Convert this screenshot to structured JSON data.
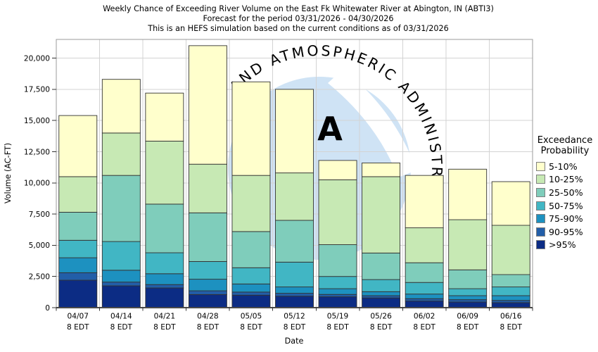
{
  "chart_data": {
    "type": "bar",
    "stacked": true,
    "title": "Weekly Chance of Exceeding River Volume on the East Fk Whitewater River at Abington, IN (ABTI3)",
    "subtitle": "Forecast for the period 03/31/2026 - 04/30/2026",
    "subtitle2": "This is an HEFS simulation based on the current conditions as of 03/31/2026",
    "xlabel": "Date",
    "ylabel": "Volume (AC-FT)",
    "ylim": [
      0,
      21500
    ],
    "yticks": [
      0,
      2500,
      5000,
      7500,
      10000,
      12500,
      15000,
      17500,
      20000
    ],
    "grid": true,
    "legend_position": "right",
    "legend_title_line1": "Exceedance",
    "legend_title_line2": "Probability",
    "categories": [
      "04/07",
      "04/14",
      "04/21",
      "04/28",
      "05/05",
      "05/12",
      "05/19",
      "05/26",
      "06/02",
      "06/09",
      "06/16"
    ],
    "tick_line2": "8 EDT",
    "series": [
      {
        "name": ">95%",
        "color": "#0c2c84",
        "values": [
          2200,
          1750,
          1580,
          1050,
          1000,
          920,
          870,
          780,
          530,
          450,
          400
        ]
      },
      {
        "name": "90-95%",
        "color": "#225ea8",
        "values": [
          600,
          300,
          270,
          300,
          250,
          230,
          190,
          180,
          190,
          190,
          180
        ]
      },
      {
        "name": "75-90%",
        "color": "#1d91c0",
        "values": [
          1200,
          950,
          870,
          930,
          650,
          510,
          460,
          320,
          370,
          320,
          380
        ]
      },
      {
        "name": "50-75%",
        "color": "#41b6c4",
        "values": [
          1400,
          2300,
          1680,
          1420,
          1300,
          1990,
          980,
          970,
          930,
          560,
          700
        ]
      },
      {
        "name": "25-50%",
        "color": "#7fcdbb",
        "values": [
          2250,
          5300,
          3900,
          3900,
          2900,
          3350,
          2550,
          2130,
          1580,
          1510,
          990
        ]
      },
      {
        "name": "10-25%",
        "color": "#c7e9b4",
        "values": [
          2850,
          3400,
          5050,
          3900,
          4500,
          3800,
          5200,
          6120,
          2800,
          4020,
          3950
        ]
      },
      {
        "name": "5-10%",
        "color": "#ffffcc",
        "values": [
          4900,
          4300,
          3850,
          9500,
          7500,
          6700,
          1550,
          1100,
          4200,
          4050,
          3500
        ]
      }
    ],
    "bar_totals": [
      15400,
      18300,
      17200,
      21000,
      18100,
      17500,
      11800,
      11600,
      10600,
      11100,
      10100
    ],
    "watermark": {
      "arc_text": "AND ATMOSPHERIC ADMINISTRA",
      "logo_letter": "A"
    },
    "colors": {
      "grid": "#d3d3d3",
      "plot_border": "#9b9b9b",
      "axis_line": "#4a4a4a",
      "bar_border": "#333333",
      "watermark_circle": "#cfe3f5",
      "watermark_text": "#aecbe9"
    }
  }
}
